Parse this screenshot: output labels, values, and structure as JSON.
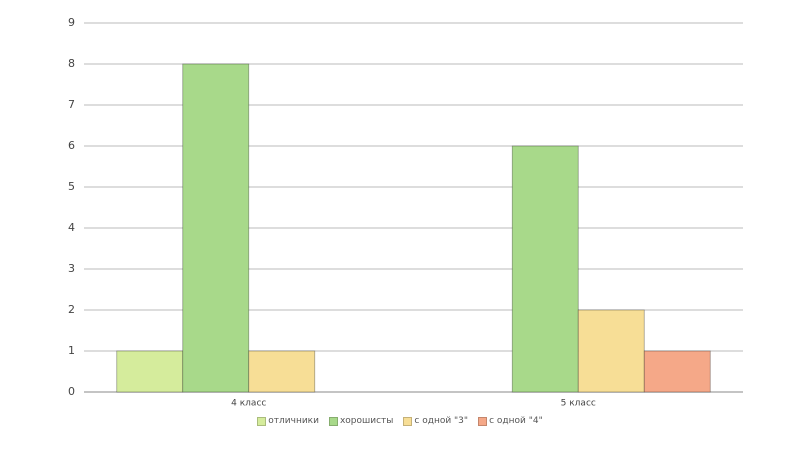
{
  "chart_data": {
    "type": "bar",
    "categories": [
      "4 класс",
      "5 класс"
    ],
    "series": [
      {
        "name": "отличники",
        "color": "#d5ec9c",
        "values": [
          1,
          0
        ]
      },
      {
        "name": "хорошисты",
        "color": "#a8d98a",
        "values": [
          8,
          6
        ]
      },
      {
        "name": "с одной \"3\"",
        "color": "#f7de96",
        "values": [
          1,
          2
        ]
      },
      {
        "name": "с одной \"4\"",
        "color": "#f5a888",
        "values": [
          0,
          1
        ]
      }
    ],
    "ylim": [
      0,
      9
    ],
    "yticks": [
      0,
      1,
      2,
      3,
      4,
      5,
      6,
      7,
      8,
      9
    ],
    "grid": true,
    "legend": "bottom"
  }
}
